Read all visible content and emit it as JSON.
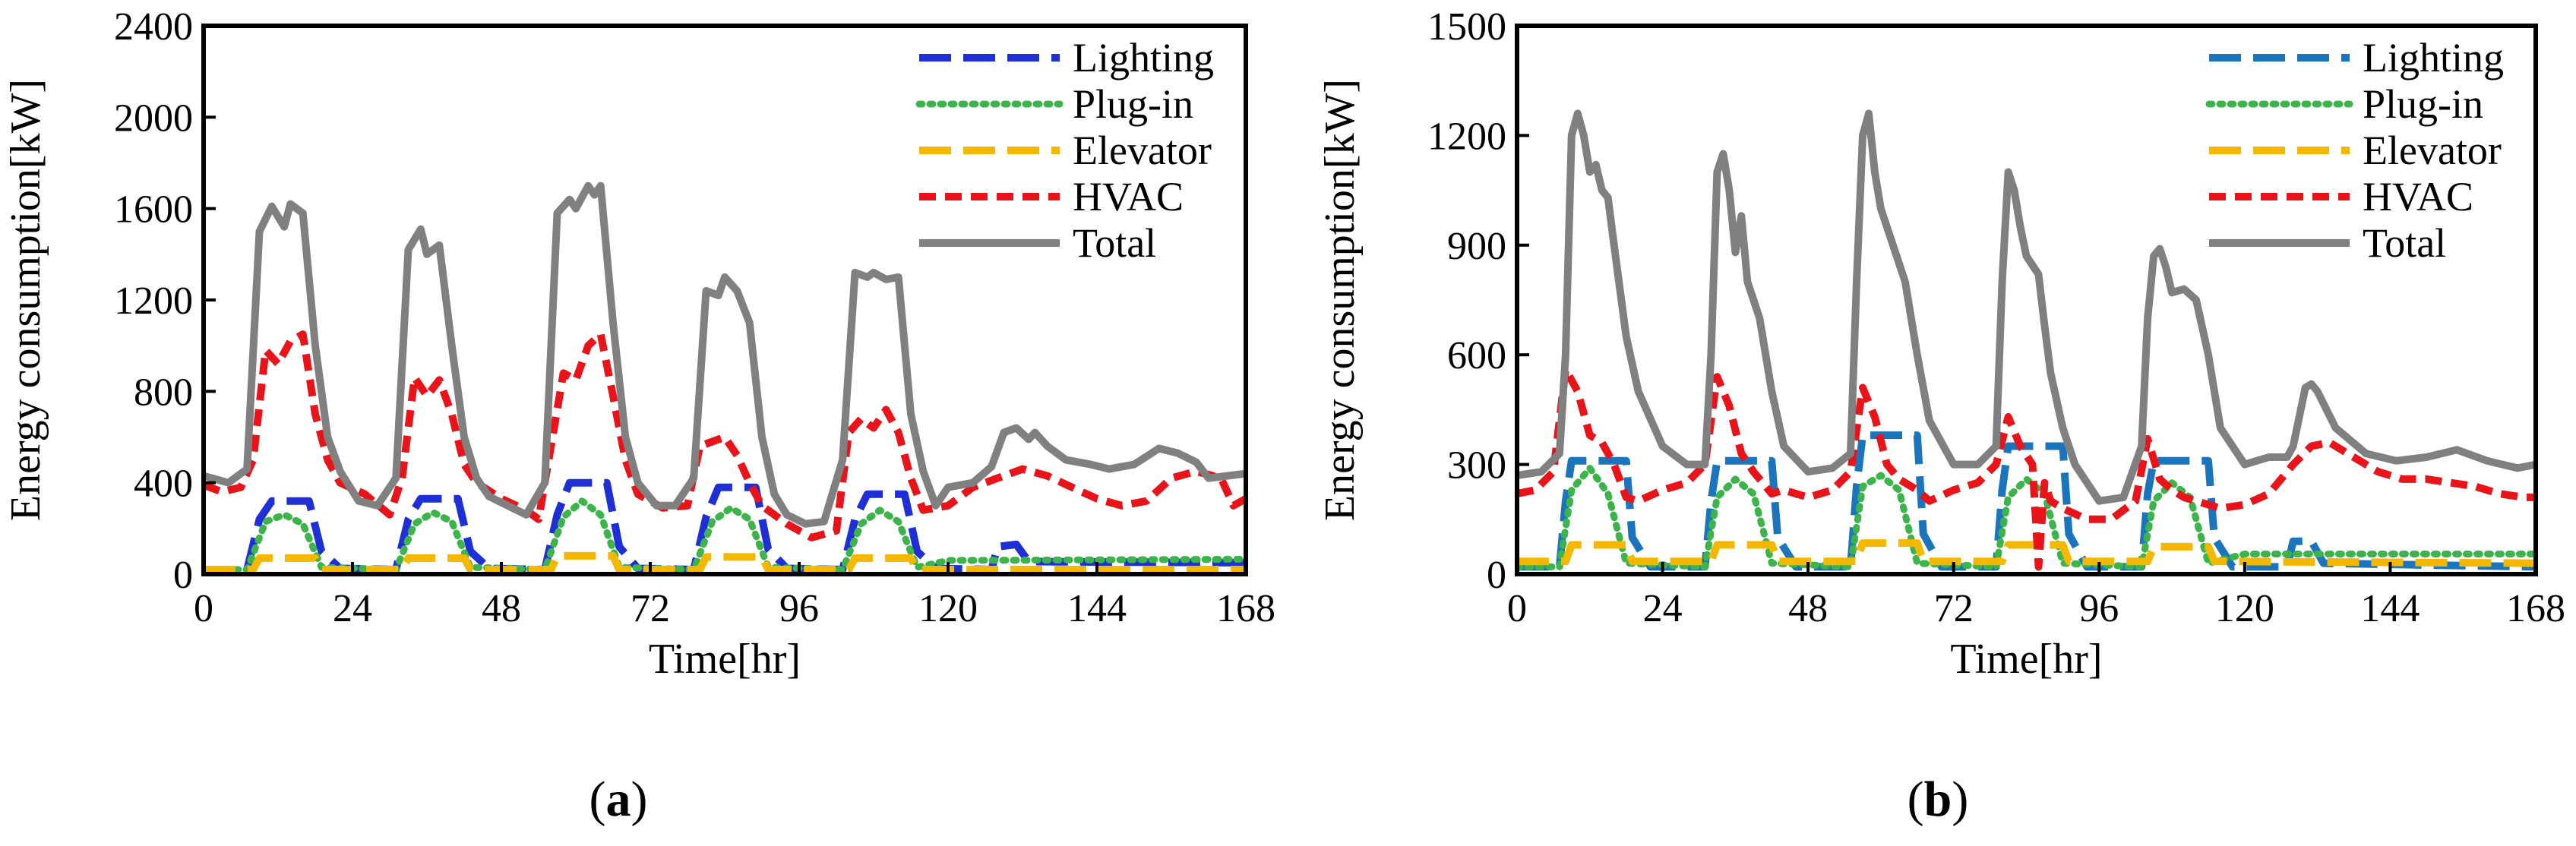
{
  "figure_labels": [
    "(a)",
    "(b)"
  ],
  "chart_data": [
    {
      "type": "line",
      "panel": "a",
      "label_letter": "a",
      "title": "",
      "xlabel": "Time[hr]",
      "ylabel": "Energy consumption[kW]",
      "xlim": [
        0,
        168
      ],
      "ylim": [
        0,
        2400
      ],
      "xticks": [
        0,
        24,
        48,
        72,
        96,
        120,
        144,
        168
      ],
      "yticks": [
        0,
        400,
        800,
        1200,
        1600,
        2000,
        2400
      ],
      "legend_position": "top-right",
      "series": [
        {
          "name": "Lighting",
          "color": "#1f2fd6",
          "dash": "long-dash",
          "x": [
            0,
            7,
            9,
            11,
            17,
            19,
            22,
            31,
            33,
            35,
            41,
            43,
            46,
            55,
            57,
            59,
            65,
            67,
            70,
            79,
            81,
            83,
            89,
            91,
            94,
            103,
            105,
            107,
            113,
            115,
            118,
            127,
            128,
            131,
            133,
            168
          ],
          "y": [
            20,
            20,
            240,
            320,
            320,
            100,
            25,
            20,
            240,
            330,
            330,
            100,
            25,
            20,
            260,
            400,
            400,
            120,
            25,
            20,
            250,
            380,
            380,
            110,
            25,
            20,
            240,
            350,
            350,
            100,
            25,
            20,
            120,
            130,
            55,
            50
          ]
        },
        {
          "name": "Plug-in",
          "color": "#3cb44b",
          "dash": "dotted",
          "x": [
            0,
            7,
            10,
            13,
            16,
            19,
            31,
            34,
            37,
            40,
            43,
            55,
            58,
            61,
            64,
            67,
            79,
            82,
            85,
            88,
            91,
            103,
            106,
            109,
            112,
            115,
            120,
            168
          ],
          "y": [
            20,
            20,
            230,
            260,
            220,
            30,
            20,
            220,
            270,
            230,
            30,
            20,
            250,
            320,
            260,
            30,
            20,
            230,
            290,
            240,
            30,
            20,
            220,
            280,
            230,
            30,
            60,
            65
          ]
        },
        {
          "name": "Elevator",
          "color": "#f5b800",
          "dash": "long-dash",
          "x": [
            0,
            8,
            9,
            18,
            19,
            32,
            33,
            42,
            43,
            56,
            57,
            66,
            67,
            80,
            81,
            90,
            91,
            104,
            105,
            114,
            115,
            168
          ],
          "y": [
            20,
            20,
            70,
            70,
            20,
            20,
            70,
            70,
            20,
            20,
            80,
            80,
            20,
            20,
            75,
            75,
            20,
            20,
            70,
            70,
            20,
            20
          ]
        },
        {
          "name": "HVAC",
          "color": "#e8141a",
          "dash": "dashed",
          "x": [
            0,
            3,
            6,
            8,
            10,
            12,
            14,
            16,
            18,
            20,
            22,
            26,
            30,
            32,
            34,
            36,
            38,
            40,
            42,
            44,
            48,
            52,
            54,
            56,
            58,
            60,
            62,
            64,
            66,
            68,
            70,
            74,
            78,
            80,
            82,
            84,
            86,
            88,
            90,
            94,
            98,
            102,
            104,
            106,
            108,
            110,
            112,
            114,
            116,
            120,
            124,
            128,
            132,
            136,
            140,
            144,
            148,
            152,
            156,
            160,
            164,
            166,
            168
          ],
          "y": [
            390,
            360,
            380,
            500,
            980,
            920,
            1020,
            1050,
            700,
            500,
            400,
            350,
            260,
            420,
            860,
            780,
            850,
            700,
            480,
            400,
            330,
            280,
            240,
            560,
            880,
            850,
            1000,
            1050,
            780,
            500,
            350,
            290,
            300,
            560,
            580,
            600,
            520,
            400,
            300,
            220,
            160,
            190,
            620,
            680,
            640,
            720,
            620,
            420,
            280,
            300,
            380,
            420,
            460,
            430,
            380,
            330,
            300,
            320,
            420,
            450,
            420,
            300,
            330
          ]
        },
        {
          "name": "Total",
          "color": "#808080",
          "dash": "solid",
          "x": [
            0,
            4,
            7,
            9,
            11,
            13,
            14,
            16,
            18,
            20,
            22,
            25,
            28,
            31,
            33,
            35,
            36,
            38,
            40,
            42,
            44,
            46,
            49,
            52,
            55,
            57,
            59,
            60,
            62,
            63,
            64,
            66,
            68,
            70,
            73,
            76,
            79,
            81,
            83,
            84,
            86,
            88,
            90,
            92,
            94,
            97,
            100,
            103,
            105,
            107,
            108,
            110,
            112,
            114,
            116,
            118,
            120,
            124,
            127,
            129,
            131,
            133,
            134,
            136,
            139,
            143,
            146,
            150,
            154,
            157,
            160,
            162,
            165,
            168
          ],
          "y": [
            430,
            400,
            460,
            1500,
            1610,
            1520,
            1620,
            1580,
            1000,
            600,
            450,
            320,
            300,
            420,
            1420,
            1510,
            1400,
            1440,
            1000,
            600,
            420,
            340,
            300,
            260,
            400,
            1580,
            1640,
            1600,
            1700,
            1660,
            1700,
            1100,
            600,
            400,
            300,
            300,
            420,
            1240,
            1220,
            1300,
            1240,
            1100,
            600,
            350,
            260,
            220,
            230,
            500,
            1320,
            1300,
            1320,
            1290,
            1300,
            700,
            450,
            300,
            380,
            400,
            470,
            620,
            640,
            590,
            620,
            560,
            500,
            480,
            460,
            480,
            550,
            530,
            490,
            420,
            430,
            440
          ]
        }
      ]
    },
    {
      "type": "line",
      "panel": "b",
      "label_letter": "b",
      "title": "",
      "xlabel": "Time[hr]",
      "ylabel": "Energy consumption[kW]",
      "xlim": [
        0,
        168
      ],
      "ylim": [
        0,
        1500
      ],
      "xticks": [
        0,
        24,
        48,
        72,
        96,
        120,
        144,
        168
      ],
      "yticks": [
        0,
        300,
        600,
        900,
        1200,
        1500
      ],
      "legend_position": "top-right",
      "series": [
        {
          "name": "Lighting",
          "color": "#1b75bc",
          "dash": "long-dash",
          "x": [
            0,
            7,
            8,
            9,
            18,
            19,
            22,
            31,
            32,
            33,
            42,
            43,
            46,
            55,
            56,
            57,
            66,
            67,
            70,
            79,
            80,
            81,
            90,
            91,
            94,
            103,
            104,
            105,
            114,
            115,
            118,
            127,
            128,
            131,
            133,
            168
          ],
          "y": [
            20,
            20,
            200,
            310,
            310,
            100,
            20,
            20,
            200,
            310,
            310,
            100,
            20,
            20,
            240,
            380,
            380,
            110,
            20,
            20,
            230,
            350,
            350,
            110,
            20,
            20,
            220,
            310,
            310,
            100,
            20,
            20,
            90,
            90,
            30,
            20
          ]
        },
        {
          "name": "Plug-in",
          "color": "#3cb44b",
          "dash": "dotted",
          "x": [
            0,
            7,
            9,
            12,
            15,
            18,
            31,
            33,
            36,
            39,
            42,
            55,
            57,
            60,
            63,
            66,
            79,
            81,
            84,
            87,
            90,
            103,
            105,
            108,
            111,
            114,
            120,
            168
          ],
          "y": [
            20,
            20,
            230,
            290,
            220,
            30,
            20,
            210,
            260,
            220,
            30,
            20,
            240,
            270,
            230,
            30,
            20,
            210,
            260,
            220,
            30,
            20,
            200,
            250,
            210,
            30,
            55,
            55
          ]
        },
        {
          "name": "Elevator",
          "color": "#f5b800",
          "dash": "long-dash",
          "x": [
            0,
            8,
            9,
            18,
            19,
            32,
            33,
            42,
            43,
            56,
            57,
            66,
            67,
            80,
            81,
            90,
            91,
            104,
            105,
            114,
            115,
            168
          ],
          "y": [
            35,
            35,
            80,
            80,
            35,
            35,
            80,
            80,
            35,
            35,
            85,
            85,
            35,
            35,
            80,
            80,
            35,
            35,
            75,
            75,
            35,
            30
          ]
        },
        {
          "name": "HVAC",
          "color": "#e8141a",
          "dash": "dashed",
          "x": [
            0,
            3,
            6,
            8,
            10,
            12,
            14,
            16,
            18,
            20,
            24,
            28,
            31,
            33,
            35,
            37,
            39,
            42,
            44,
            48,
            52,
            55,
            57,
            59,
            61,
            63,
            66,
            68,
            72,
            76,
            79,
            81,
            83,
            85,
            86,
            87,
            88,
            90,
            94,
            98,
            102,
            104,
            106,
            108,
            110,
            112,
            114,
            116,
            120,
            124,
            128,
            131,
            134,
            138,
            142,
            146,
            150,
            154,
            158,
            162,
            166,
            168
          ],
          "y": [
            220,
            230,
            280,
            560,
            500,
            380,
            360,
            300,
            210,
            200,
            230,
            250,
            300,
            540,
            460,
            330,
            280,
            220,
            230,
            210,
            230,
            280,
            510,
            430,
            300,
            260,
            230,
            200,
            230,
            250,
            300,
            430,
            350,
            300,
            20,
            250,
            200,
            180,
            150,
            150,
            200,
            370,
            260,
            230,
            210,
            200,
            190,
            180,
            190,
            220,
            300,
            350,
            360,
            320,
            280,
            260,
            260,
            250,
            240,
            220,
            210,
            210
          ]
        },
        {
          "name": "Total",
          "color": "#808080",
          "dash": "solid",
          "x": [
            0,
            4,
            7,
            8,
            9,
            10,
            11,
            12,
            13,
            14,
            15,
            16,
            18,
            20,
            24,
            28,
            31,
            32,
            33,
            34,
            35,
            36,
            37,
            38,
            40,
            42,
            44,
            48,
            52,
            55,
            56,
            57,
            58,
            59,
            60,
            62,
            64,
            66,
            68,
            72,
            76,
            79,
            80,
            81,
            82,
            83,
            84,
            86,
            87,
            88,
            90,
            92,
            96,
            100,
            103,
            104,
            105,
            106,
            107,
            108,
            110,
            112,
            114,
            116,
            120,
            124,
            127,
            128,
            130,
            131,
            132,
            135,
            140,
            145,
            150,
            155,
            160,
            165,
            168
          ],
          "y": [
            270,
            280,
            330,
            600,
            1200,
            1260,
            1200,
            1100,
            1120,
            1050,
            1030,
            900,
            650,
            500,
            350,
            300,
            300,
            600,
            1100,
            1150,
            1050,
            880,
            980,
            800,
            700,
            500,
            350,
            280,
            290,
            330,
            800,
            1200,
            1260,
            1100,
            1000,
            900,
            800,
            600,
            420,
            300,
            300,
            350,
            800,
            1100,
            1050,
            950,
            870,
            820,
            680,
            550,
            400,
            300,
            200,
            210,
            350,
            700,
            870,
            890,
            840,
            770,
            780,
            750,
            600,
            400,
            300,
            320,
            320,
            350,
            510,
            520,
            500,
            400,
            330,
            310,
            320,
            340,
            310,
            290,
            300
          ]
        }
      ]
    }
  ]
}
